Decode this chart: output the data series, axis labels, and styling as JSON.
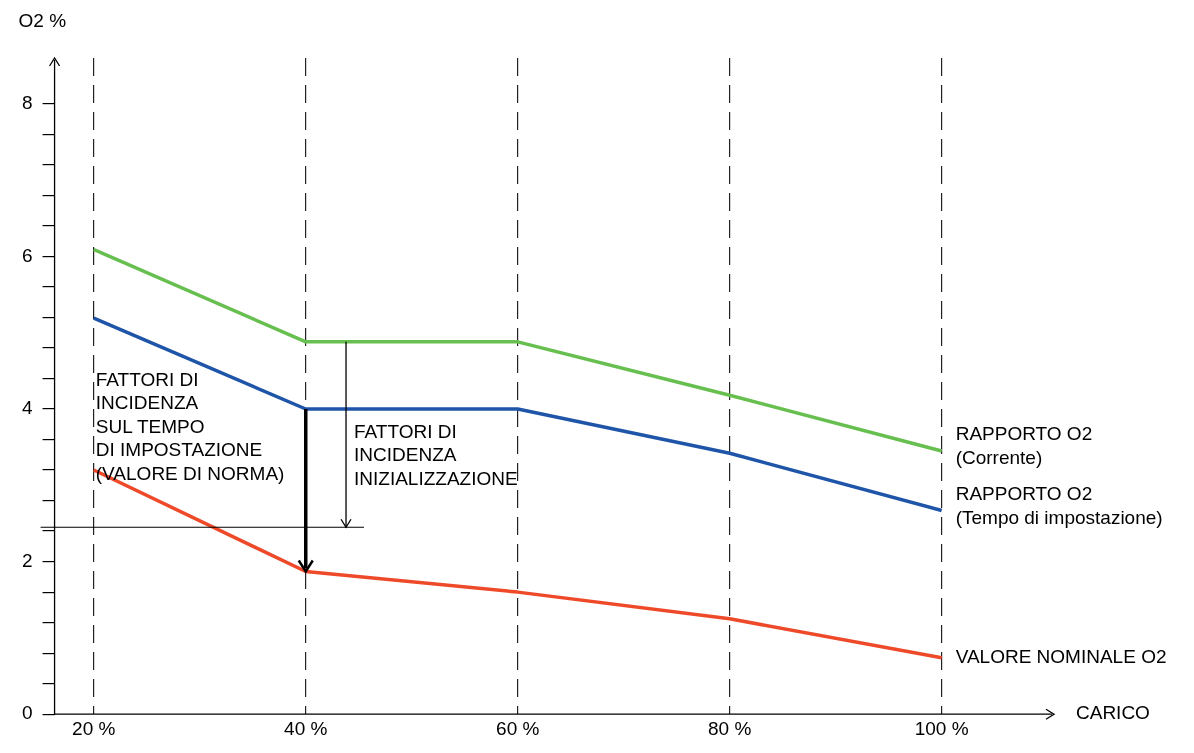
{
  "chart_data": {
    "type": "line",
    "xlabel": "CARICO",
    "ylabel": "O2 %",
    "x": [
      20,
      40,
      60,
      80,
      100
    ],
    "series": [
      {
        "name": "RAPPORTO O2\n(Corrente)",
        "color": "#66bf4e",
        "values": [
          6.09,
          4.88,
          4.88,
          4.18,
          3.45
        ]
      },
      {
        "name": "RAPPORTO O2\n(Tempo di impostazione)",
        "color": "#1f55a8",
        "values": [
          5.19,
          4.0,
          4.0,
          3.42,
          2.67
        ]
      },
      {
        "name": "VALORE NOMINALE O2",
        "color": "#ee4a2a",
        "values": [
          3.2,
          1.87,
          1.6,
          1.25,
          0.74
        ]
      }
    ],
    "xlim": [
      16.3,
      110.6
    ],
    "ylim": [
      0,
      8.6
    ],
    "xticks": [
      {
        "value": 20,
        "label": "20 %"
      },
      {
        "value": 40,
        "label": "40 %"
      },
      {
        "value": 60,
        "label": "60 %"
      },
      {
        "value": 80,
        "label": "80 %"
      },
      {
        "value": 100,
        "label": "100 %"
      }
    ],
    "yticks": [
      0,
      {
        "value": 0.4,
        "label": null
      },
      {
        "value": 0.8,
        "label": null
      },
      {
        "value": 1.2,
        "label": null
      },
      {
        "value": 1.6,
        "label": null
      },
      2,
      {
        "value": 2.4,
        "label": null
      },
      {
        "value": 2.8,
        "label": null
      },
      {
        "value": 3.2,
        "label": null
      },
      {
        "value": 3.6,
        "label": null
      },
      4,
      {
        "value": 4.4,
        "label": null
      },
      {
        "value": 4.8,
        "label": null
      },
      {
        "value": 5.2,
        "label": null
      },
      {
        "value": 5.6,
        "label": null
      },
      6,
      {
        "value": 6.4,
        "label": null
      },
      {
        "value": 6.8,
        "label": null
      },
      {
        "value": 7.2,
        "label": null
      },
      {
        "value": 7.6,
        "label": null
      },
      8
    ],
    "ref_lines": [
      {
        "axis": "y",
        "value": 2.45,
        "color": "#000000"
      }
    ],
    "annotations": [
      "FATTORI DI\nINCIDENZA\nSUL TEMPO\nDI IMPOSTAZIONE\n(VALORE DI NORMA)",
      "FATTORI DI\nINCIDENZA\nINIZIALIZZAZIONE"
    ],
    "grid": "x",
    "legend": false,
    "marker": "none",
    "line_style": "solid"
  }
}
